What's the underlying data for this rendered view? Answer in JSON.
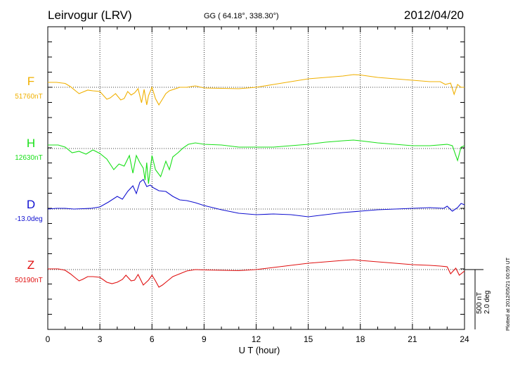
{
  "header": {
    "station": "Leirvogur (LRV)",
    "coords": "GG ( 64.18°, 338.30°)",
    "date": "2012/04/20"
  },
  "footer": {
    "plotted": "Plotted at 2012/05/21 00:59 UT"
  },
  "colors": {
    "F": "#f0b000",
    "H": "#18e018",
    "D": "#1010d0",
    "Z": "#e01010"
  },
  "chart_data": {
    "type": "line",
    "xlabel": "U T (hour)",
    "xlim": [
      0,
      24
    ],
    "xticks": [
      "0",
      "3",
      "6",
      "9",
      "12",
      "15",
      "18",
      "21",
      "24"
    ],
    "scale": {
      "nT": "500 nT",
      "deg": "2.0 deg"
    },
    "series": [
      {
        "name": "F",
        "baseline": "51760nT",
        "color": "#f0b000",
        "x": [
          0,
          0.5,
          1.0,
          1.3,
          1.6,
          1.8,
          2.0,
          2.3,
          2.6,
          3.0,
          3.4,
          3.6,
          3.9,
          4.2,
          4.4,
          4.6,
          4.8,
          5.0,
          5.2,
          5.4,
          5.55,
          5.7,
          5.8,
          6.0,
          6.2,
          6.4,
          6.6,
          6.8,
          7.0,
          7.3,
          7.6,
          8.0,
          8.5,
          9.0,
          10,
          11,
          12,
          13,
          14,
          15,
          16,
          17,
          17.6,
          18,
          19,
          20,
          21,
          22,
          22.6,
          22.9,
          23.2,
          23.4,
          23.6,
          23.8,
          24
        ],
        "values": [
          70,
          70,
          55,
          10,
          -50,
          -90,
          -70,
          -40,
          -50,
          -60,
          -170,
          -150,
          -90,
          -180,
          -160,
          -60,
          -110,
          -80,
          -20,
          -220,
          -30,
          -250,
          -120,
          0,
          -160,
          -250,
          -170,
          -90,
          -50,
          -25,
          0,
          0,
          20,
          -10,
          -15,
          -20,
          0,
          40,
          80,
          120,
          140,
          160,
          180,
          175,
          140,
          120,
          100,
          80,
          80,
          40,
          60,
          -100,
          40,
          0,
          0
        ]
      },
      {
        "name": "H",
        "baseline": "12630nT",
        "color": "#18e018",
        "x": [
          0,
          0.6,
          1.0,
          1.4,
          1.8,
          2.2,
          2.6,
          3.0,
          3.4,
          3.8,
          4.1,
          4.4,
          4.7,
          4.9,
          5.1,
          5.3,
          5.5,
          5.6,
          5.7,
          5.8,
          5.9,
          6.0,
          6.2,
          6.5,
          6.8,
          7.0,
          7.2,
          7.5,
          7.8,
          8.1,
          8.5,
          9,
          10,
          11,
          12,
          13,
          14,
          15,
          16,
          17,
          17.6,
          18,
          19,
          20,
          21,
          22,
          23,
          23.3,
          23.6,
          23.8,
          24
        ],
        "values": [
          50,
          50,
          20,
          -60,
          -40,
          -80,
          -20,
          -70,
          -150,
          -300,
          -220,
          -250,
          -100,
          -350,
          -100,
          -200,
          -280,
          -450,
          -200,
          -500,
          -300,
          -100,
          -300,
          -400,
          -180,
          -300,
          -120,
          -60,
          10,
          60,
          80,
          60,
          50,
          20,
          20,
          20,
          40,
          60,
          90,
          110,
          120,
          110,
          80,
          60,
          40,
          40,
          60,
          40,
          -170,
          20,
          40
        ]
      },
      {
        "name": "D",
        "baseline": "-13.0deg",
        "color": "#1010d0",
        "x": [
          0,
          0.5,
          1.0,
          1.5,
          2.0,
          2.5,
          3.0,
          3.5,
          4.0,
          4.3,
          4.6,
          4.9,
          5.1,
          5.3,
          5.5,
          5.7,
          5.9,
          6.1,
          6.4,
          6.8,
          7.2,
          7.6,
          8.0,
          8.5,
          9.0,
          9.5,
          10.0,
          11,
          12,
          13,
          14,
          15,
          16,
          17,
          18,
          19,
          20,
          21,
          22,
          22.8,
          23.0,
          23.3,
          23.6,
          23.8,
          24
        ],
        "values": [
          0,
          10,
          10,
          0,
          5,
          10,
          30,
          100,
          180,
          140,
          250,
          330,
          220,
          380,
          420,
          320,
          340,
          300,
          260,
          250,
          180,
          130,
          120,
          90,
          50,
          20,
          -10,
          -60,
          -80,
          -70,
          -80,
          -110,
          -80,
          -50,
          -30,
          -10,
          0,
          10,
          20,
          10,
          40,
          -30,
          20,
          80,
          60
        ]
      },
      {
        "name": "Z",
        "baseline": "50190nT",
        "color": "#e01010",
        "x": [
          0,
          0.6,
          1.0,
          1.3,
          1.6,
          1.8,
          2.0,
          2.3,
          2.6,
          3.0,
          3.4,
          3.7,
          4.0,
          4.3,
          4.5,
          4.8,
          5.0,
          5.2,
          5.5,
          5.8,
          6.0,
          6.2,
          6.4,
          6.6,
          6.9,
          7.2,
          7.6,
          8.0,
          8.5,
          9,
          10,
          11,
          12,
          13,
          14,
          15,
          16,
          17,
          17.6,
          18,
          19,
          20,
          21,
          22,
          22.6,
          23.0,
          23.2,
          23.5,
          23.7,
          24
        ],
        "values": [
          10,
          10,
          -10,
          -60,
          -120,
          -160,
          -140,
          -100,
          -100,
          -110,
          -180,
          -200,
          -180,
          -140,
          -80,
          -160,
          -150,
          -70,
          -220,
          -150,
          -80,
          -160,
          -250,
          -220,
          -160,
          -100,
          -60,
          -20,
          0,
          -5,
          -10,
          -15,
          0,
          30,
          60,
          90,
          110,
          130,
          140,
          130,
          110,
          90,
          70,
          60,
          50,
          40,
          -60,
          20,
          -80,
          -20
        ]
      }
    ]
  }
}
